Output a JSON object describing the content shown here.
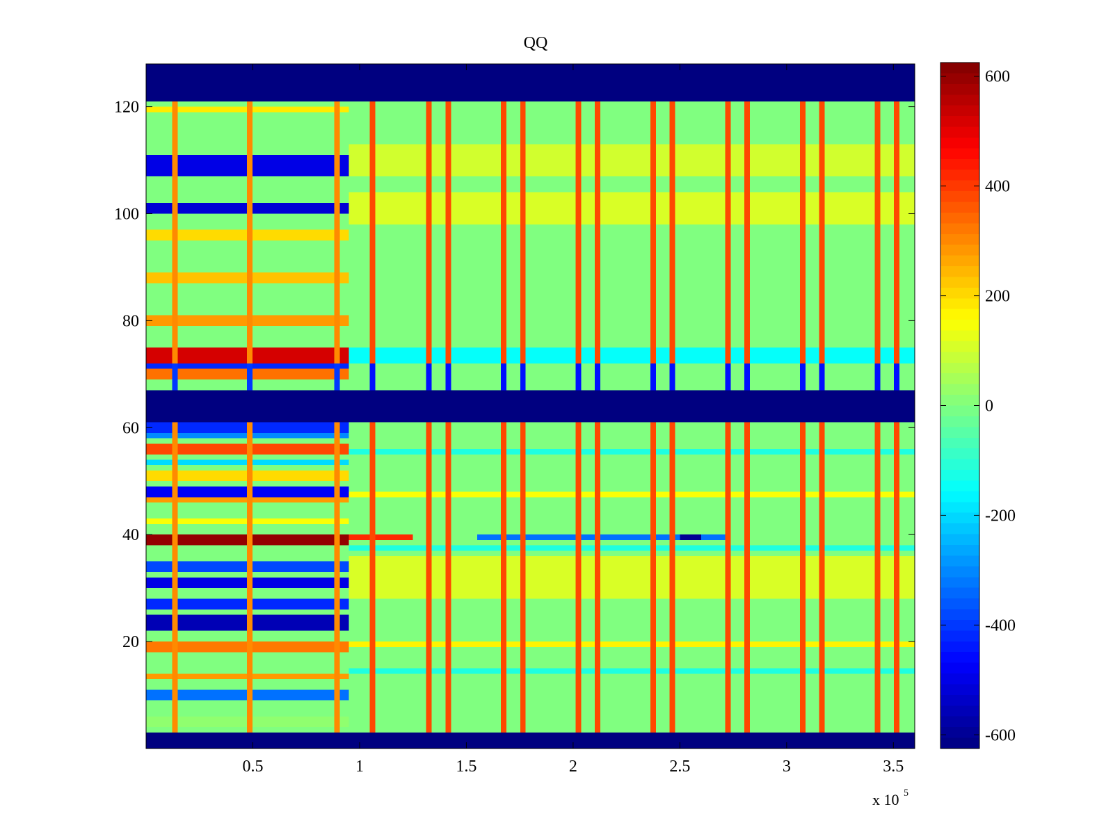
{
  "chart_data": {
    "type": "heatmap",
    "title": "QQ",
    "xlabel": "",
    "ylabel": "",
    "x_multiplier_label": "x 10",
    "x_multiplier_exponent": "5",
    "xlim": [
      0,
      360000
    ],
    "ylim": [
      0,
      128
    ],
    "x_ticks": [
      {
        "value": 50000,
        "label": "0.5"
      },
      {
        "value": 100000,
        "label": "1"
      },
      {
        "value": 150000,
        "label": "1.5"
      },
      {
        "value": 200000,
        "label": "2"
      },
      {
        "value": 250000,
        "label": "2.5"
      },
      {
        "value": 300000,
        "label": "3"
      },
      {
        "value": 350000,
        "label": "3.5"
      }
    ],
    "y_ticks": [
      {
        "value": 20,
        "label": "20"
      },
      {
        "value": 40,
        "label": "40"
      },
      {
        "value": 60,
        "label": "60"
      },
      {
        "value": 80,
        "label": "80"
      },
      {
        "value": 100,
        "label": "100"
      },
      {
        "value": 120,
        "label": "120"
      }
    ],
    "colorbar": {
      "colormap": "jet",
      "range": [
        -625,
        625
      ],
      "ticks": [
        {
          "value": 600,
          "label": "600"
        },
        {
          "value": 400,
          "label": "400"
        },
        {
          "value": 200,
          "label": "200"
        },
        {
          "value": 0,
          "label": "0"
        },
        {
          "value": -200,
          "label": "-200"
        },
        {
          "value": -400,
          "label": "-400"
        },
        {
          "value": -600,
          "label": "-600"
        }
      ]
    },
    "masked_rows": [
      [
        0,
        3
      ],
      [
        61,
        67
      ],
      [
        121,
        128
      ]
    ],
    "masked_value": -625,
    "early_segment_end_x": 95000,
    "row_values_early": [
      {
        "rows": [
          4,
          6
        ],
        "value": 20
      },
      {
        "rows": [
          9,
          11
        ],
        "value": -330
      },
      {
        "rows": [
          13,
          14
        ],
        "value": 280
      },
      {
        "rows": [
          18,
          20
        ],
        "value": 320
      },
      {
        "rows": [
          22,
          25
        ],
        "value": -560
      },
      {
        "rows": [
          26,
          28
        ],
        "value": -420
      },
      {
        "rows": [
          30,
          32
        ],
        "value": -500
      },
      {
        "rows": [
          33,
          35
        ],
        "value": -380
      },
      {
        "rows": [
          38,
          40
        ],
        "value": 600
      },
      {
        "rows": [
          42,
          43
        ],
        "value": 150
      },
      {
        "rows": [
          46,
          47
        ],
        "value": 280
      },
      {
        "rows": [
          47,
          49
        ],
        "value": -480
      },
      {
        "rows": [
          50,
          52
        ],
        "value": 200
      },
      {
        "rows": [
          53,
          54
        ],
        "value": -200
      },
      {
        "rows": [
          55,
          57
        ],
        "value": 380
      },
      {
        "rows": [
          58,
          59
        ],
        "value": -300
      },
      {
        "rows": [
          59,
          61
        ],
        "value": -420
      },
      {
        "rows": [
          69,
          71
        ],
        "value": 330
      },
      {
        "rows": [
          71,
          72
        ],
        "value": -420
      },
      {
        "rows": [
          72,
          75
        ],
        "value": 520
      },
      {
        "rows": [
          79,
          81
        ],
        "value": 280
      },
      {
        "rows": [
          87,
          89
        ],
        "value": 230
      },
      {
        "rows": [
          95,
          97
        ],
        "value": 200
      },
      {
        "rows": [
          100,
          102
        ],
        "value": -520
      },
      {
        "rows": [
          107,
          111
        ],
        "value": -500
      },
      {
        "rows": [
          119,
          120
        ],
        "value": 180
      }
    ],
    "row_values_late": [
      {
        "rows": [
          14,
          15
        ],
        "value": -120
      },
      {
        "rows": [
          19,
          20
        ],
        "value": 170
      },
      {
        "rows": [
          28,
          36
        ],
        "value": 110
      },
      {
        "rows": [
          37,
          38
        ],
        "value": -120
      },
      {
        "rows": [
          47,
          48
        ],
        "value": 150
      },
      {
        "rows": [
          55,
          56
        ],
        "value": -120
      },
      {
        "rows": [
          72,
          75
        ],
        "value": -150
      },
      {
        "rows": [
          98,
          104
        ],
        "value": 110
      },
      {
        "rows": [
          107,
          113
        ],
        "value": 100
      }
    ],
    "streaks": [
      {
        "row": 39,
        "x_range": [
          95000,
          125000
        ],
        "value": 420
      },
      {
        "row": 39,
        "x_range": [
          155000,
          272000
        ],
        "value": -330
      },
      {
        "row": 39,
        "x_range": [
          250000,
          260000
        ],
        "value": -600
      }
    ],
    "spike_columns": [
      {
        "x": 13500,
        "top_value": 300,
        "bottom_value": -400
      },
      {
        "x": 48500,
        "top_value": 300,
        "bottom_value": -400
      },
      {
        "x": 89500,
        "top_value": 300,
        "bottom_value": -400
      },
      {
        "x": 106000,
        "top_value": 380,
        "bottom_value": -450
      },
      {
        "x": 132500,
        "top_value": 380,
        "bottom_value": -450
      },
      {
        "x": 141500,
        "top_value": 380,
        "bottom_value": -450
      },
      {
        "x": 167500,
        "top_value": 380,
        "bottom_value": -450
      },
      {
        "x": 176500,
        "top_value": 380,
        "bottom_value": -450
      },
      {
        "x": 202500,
        "top_value": 380,
        "bottom_value": -450
      },
      {
        "x": 211500,
        "top_value": 380,
        "bottom_value": -450
      },
      {
        "x": 237500,
        "top_value": 380,
        "bottom_value": -450
      },
      {
        "x": 246500,
        "top_value": 380,
        "bottom_value": -450
      },
      {
        "x": 272500,
        "top_value": 380,
        "bottom_value": -450
      },
      {
        "x": 281500,
        "top_value": 380,
        "bottom_value": -450
      },
      {
        "x": 307500,
        "top_value": 380,
        "bottom_value": -450
      },
      {
        "x": 316500,
        "top_value": 380,
        "bottom_value": -450
      },
      {
        "x": 342500,
        "top_value": 380,
        "bottom_value": -450
      },
      {
        "x": 351500,
        "top_value": 380,
        "bottom_value": -450
      }
    ],
    "background_value": 0,
    "grid": false
  }
}
